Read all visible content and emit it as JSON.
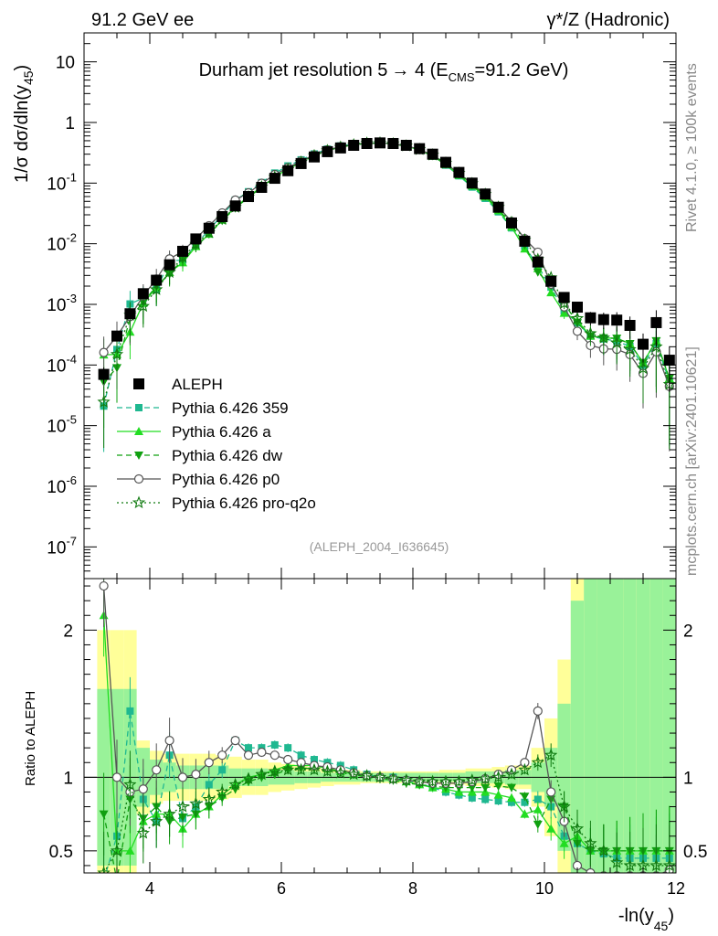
{
  "header": {
    "left": "91.2 GeV ee",
    "right": "γ*/Z (Hadronic)"
  },
  "side_labels": {
    "rivet": "Rivet 4.1.0, ≥ 100k events",
    "mcplots": "mcplots.cern.ch [arXiv:2401.10621]"
  },
  "chart_data": {
    "type": "line",
    "title": "Durham jet resolution 5 → 4 (E_CMS=91.2 GeV)",
    "title_main": "Durham jet resolution 5",
    "title_arrow": "→",
    "title_num": " 4 (E",
    "title_sub": "CMS",
    "title_tail": "=91.2 GeV)",
    "analysis": "(ALEPH_2004_I636645)",
    "ylabel_top": "1/σ  dσ/dln(y45)",
    "ylabel_top_main": "1/σ  dσ/dln(y",
    "ylabel_top_sub": "45",
    "ylabel_top_close": ")",
    "ylabel_bottom": "Ratio to ALEPH",
    "xlabel": "-ln(y45)",
    "xlabel_main": "-ln(y",
    "xlabel_sub": "45",
    "xlabel_close": ")",
    "xlim": [
      3.0,
      12.0
    ],
    "ylim_log": [
      3e-08,
      30
    ],
    "ratio_ylim": [
      0.35,
      2.35
    ],
    "x_ticks": [
      "4",
      "6",
      "8",
      "10",
      "12"
    ],
    "y_ticks_top": [
      "10",
      "1",
      "10^-1",
      "10^-2",
      "10^-3",
      "10^-4",
      "10^-5",
      "10^-6",
      "10^-7"
    ],
    "ratio_ticks": [
      "2",
      "1",
      "0.5"
    ],
    "legend": [
      {
        "name": "ALEPH",
        "style": "square"
      },
      {
        "name": "Pythia 6.426 359",
        "style": "dashed-square"
      },
      {
        "name": "Pythia 6.426 a",
        "style": "solid-triangle"
      },
      {
        "name": "Pythia 6.426 dw",
        "style": "dashed-invtriangle"
      },
      {
        "name": "Pythia 6.426 p0",
        "style": "solid-circle"
      },
      {
        "name": "Pythia 6.426 pro-q2o",
        "style": "dotted-star"
      }
    ],
    "x": [
      3.3,
      3.5,
      3.7,
      3.9,
      4.1,
      4.3,
      4.5,
      4.7,
      4.9,
      5.1,
      5.3,
      5.5,
      5.7,
      5.9,
      6.1,
      6.3,
      6.5,
      6.7,
      6.9,
      7.1,
      7.3,
      7.5,
      7.7,
      7.9,
      8.1,
      8.3,
      8.5,
      8.7,
      8.9,
      9.1,
      9.3,
      9.5,
      9.7,
      9.9,
      10.1,
      10.3,
      10.5,
      10.7,
      10.9,
      11.1,
      11.3,
      11.5,
      11.7,
      11.9
    ],
    "data": [
      7e-05,
      0.0003,
      0.0007,
      0.0015,
      0.0025,
      0.0045,
      0.0075,
      0.012,
      0.018,
      0.028,
      0.042,
      0.06,
      0.085,
      0.12,
      0.16,
      0.21,
      0.27,
      0.33,
      0.38,
      0.42,
      0.45,
      0.46,
      0.45,
      0.42,
      0.37,
      0.3,
      0.22,
      0.15,
      0.1,
      0.066,
      0.04,
      0.022,
      0.011,
      0.005,
      0.0024,
      0.0013,
      0.0009,
      0.0006,
      0.00056,
      0.00055,
      0.00045,
      0.00022,
      0.0005,
      0.00012
    ],
    "data_err": [
      0.3,
      0.15,
      0.08,
      0.05,
      0.04,
      0.04,
      0.04,
      0.04,
      0.04,
      0.04,
      0.04,
      0.03,
      0.03,
      0.03,
      0.03,
      0.03,
      0.02,
      0.02,
      0.02,
      0.02,
      0.02,
      0.02,
      0.02,
      0.02,
      0.02,
      0.02,
      0.02,
      0.02,
      0.03,
      0.03,
      0.04,
      0.04,
      0.05,
      0.07,
      0.1,
      0.15,
      0.2,
      0.25,
      0.3,
      0.35,
      0.4,
      0.5,
      0.6,
      0.7
    ],
    "band_stat": [
      0.6,
      0.6,
      0.6,
      0.2,
      0.12,
      0.1,
      0.08,
      0.08,
      0.08,
      0.08,
      0.06,
      0.06,
      0.06,
      0.05,
      0.05,
      0.04,
      0.04,
      0.03,
      0.03,
      0.03,
      0.03,
      0.03,
      0.03,
      0.03,
      0.03,
      0.03,
      0.03,
      0.03,
      0.04,
      0.04,
      0.04,
      0.05,
      0.05,
      0.1,
      0.2,
      0.5,
      1.2,
      1.5,
      1.6,
      1.7,
      1.8,
      1.9,
      2.0,
      2.0
    ],
    "band_tot": [
      1.0,
      1.0,
      1.0,
      0.25,
      0.18,
      0.16,
      0.16,
      0.16,
      0.16,
      0.15,
      0.14,
      0.12,
      0.12,
      0.1,
      0.09,
      0.08,
      0.07,
      0.06,
      0.05,
      0.05,
      0.04,
      0.04,
      0.04,
      0.04,
      0.04,
      0.04,
      0.05,
      0.05,
      0.06,
      0.06,
      0.07,
      0.08,
      0.08,
      0.2,
      0.4,
      0.8,
      1.5,
      1.8,
      2.0,
      2.2,
      2.4,
      2.5,
      2.5,
      2.5
    ],
    "series": [
      {
        "name": "Pythia 6.426 359",
        "color": "#1fb890",
        "dash": "6,4",
        "marker": "square",
        "ratio": [
          0.3,
          0.6,
          1.45,
          0.85,
          0.7,
          1.15,
          0.72,
          0.8,
          0.95,
          1.05,
          1.25,
          1.2,
          1.2,
          1.22,
          1.2,
          1.15,
          1.12,
          1.1,
          1.08,
          1.05,
          1.02,
          1.0,
          1.0,
          0.98,
          0.96,
          0.93,
          0.9,
          0.88,
          0.86,
          0.85,
          0.84,
          0.83,
          0.83,
          0.85,
          0.8,
          0.6,
          0.55,
          0.5,
          0.48,
          0.45,
          0.45,
          0.45,
          0.45,
          0.45
        ]
      },
      {
        "name": "Pythia 6.426 a",
        "color": "#22dd22",
        "dash": "none",
        "marker": "triangle",
        "ratio": [
          2.1,
          0.5,
          0.5,
          0.7,
          0.75,
          0.75,
          0.65,
          0.75,
          0.8,
          0.88,
          0.95,
          1.0,
          1.02,
          1.05,
          1.08,
          1.08,
          1.08,
          1.06,
          1.04,
          1.02,
          1.01,
          1.0,
          0.99,
          0.97,
          0.95,
          0.93,
          0.92,
          0.9,
          0.9,
          0.9,
          0.88,
          0.86,
          0.75,
          0.78,
          0.65,
          0.55,
          0.6,
          0.5,
          0.5,
          0.5,
          0.5,
          0.5,
          0.5,
          0.5
        ]
      },
      {
        "name": "Pythia 6.426 dw",
        "color": "#10a010",
        "dash": "6,4",
        "marker": "invtriangle",
        "ratio": [
          0.75,
          0.3,
          0.85,
          0.72,
          0.8,
          0.7,
          0.73,
          0.75,
          0.8,
          0.86,
          0.92,
          0.97,
          1.0,
          1.02,
          1.05,
          1.06,
          1.06,
          1.05,
          1.04,
          1.02,
          1.0,
          0.99,
          0.98,
          0.96,
          0.95,
          0.94,
          0.93,
          0.93,
          0.93,
          0.93,
          0.94,
          0.93,
          0.87,
          0.68,
          0.85,
          0.8,
          0.55,
          0.5,
          0.5,
          0.5,
          0.5,
          0.5,
          0.5,
          0.5
        ]
      },
      {
        "name": "Pythia 6.426 p0",
        "color": "#555555",
        "dash": "none",
        "marker": "circle",
        "ratio": [
          2.3,
          1.0,
          0.9,
          0.92,
          1.05,
          1.25,
          1.0,
          1.02,
          1.1,
          1.15,
          1.25,
          1.15,
          1.17,
          1.15,
          1.12,
          1.1,
          1.08,
          1.07,
          1.05,
          1.03,
          1.01,
          1.0,
          0.99,
          0.98,
          0.97,
          0.96,
          0.96,
          0.96,
          0.97,
          0.99,
          1.02,
          1.05,
          1.1,
          1.45,
          0.9,
          0.7,
          0.4,
          0.35,
          0.33,
          0.33,
          0.33,
          0.33,
          0.33,
          0.37
        ]
      },
      {
        "name": "Pythia 6.426 pro-q2o",
        "color": "#107a10",
        "dash": "2,3",
        "marker": "star",
        "ratio": [
          0.35,
          0.5,
          0.95,
          0.62,
          0.7,
          0.75,
          0.8,
          0.82,
          0.85,
          0.9,
          0.95,
          0.99,
          1.02,
          1.04,
          1.05,
          1.05,
          1.05,
          1.04,
          1.03,
          1.02,
          1.01,
          1.0,
          0.99,
          0.98,
          0.97,
          0.97,
          0.97,
          0.97,
          0.98,
          0.99,
          1.0,
          1.02,
          1.05,
          1.1,
          1.15,
          0.8,
          0.65,
          0.55,
          0.5,
          0.42,
          0.4,
          0.4,
          0.4,
          0.4
        ]
      }
    ]
  }
}
